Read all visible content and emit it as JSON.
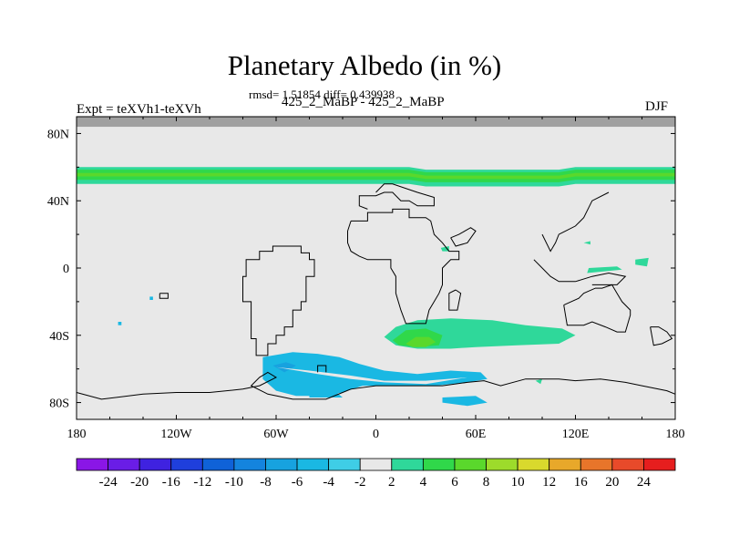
{
  "header": {
    "title": "Planetary Albedo (in %)",
    "stats": "rmsd= 1.51854 diff= 0.439938",
    "expt": "Expt = teXVh1-teXVh",
    "subtitle": "425_2_MaBP - 425_2_MaBP",
    "season": "DJF"
  },
  "chart_data": {
    "type": "heatmap",
    "title": "Planetary Albedo (in %)",
    "subtitle": "425_2_MaBP - 425_2_MaBP",
    "xlim": [
      -180,
      180
    ],
    "ylim": [
      -90,
      90
    ],
    "x_ticks": [
      {
        "value": -180,
        "label": "180"
      },
      {
        "value": -120,
        "label": "120W"
      },
      {
        "value": -60,
        "label": "60W"
      },
      {
        "value": 0,
        "label": "0"
      },
      {
        "value": 60,
        "label": "60E"
      },
      {
        "value": 120,
        "label": "120E"
      },
      {
        "value": 180,
        "label": "180"
      }
    ],
    "y_ticks": [
      {
        "value": 80,
        "label": "80N"
      },
      {
        "value": 40,
        "label": "40N"
      },
      {
        "value": 0,
        "label": "0"
      },
      {
        "value": -40,
        "label": "40S"
      },
      {
        "value": -80,
        "label": "80S"
      }
    ],
    "colorbar": {
      "labels": [
        "-24",
        "-20",
        "-16",
        "-12",
        "-10",
        "-8",
        "-6",
        "-4",
        "-2",
        "2",
        "4",
        "6",
        "8",
        "10",
        "12",
        "16",
        "20",
        "24"
      ],
      "colors": [
        "#8a16e6",
        "#6a1de6",
        "#3f22e0",
        "#1f3fdc",
        "#0f62d8",
        "#1484de",
        "#17a2df",
        "#1ab8e3",
        "#3fcde6",
        "#e8e8e8",
        "#2fd89a",
        "#30d84a",
        "#5ad82c",
        "#9ddb2b",
        "#d9d92d",
        "#e8a82a",
        "#e8752a",
        "#e84a2a",
        "#e61e1e"
      ]
    },
    "fields": [
      {
        "name": "northern-band",
        "lon": [
          -180,
          180
        ],
        "lat": [
          50,
          60
        ],
        "value_range": [
          4,
          8
        ]
      },
      {
        "name": "south-atlantic-indian",
        "lon": [
          5,
          120
        ],
        "lat": [
          -48,
          -30
        ],
        "value_range": [
          2,
          8
        ]
      },
      {
        "name": "southern-ocean-band",
        "lon": [
          -68,
          67
        ],
        "lat": [
          -80,
          -50
        ],
        "value_range": [
          -6,
          -2
        ]
      },
      {
        "name": "new-guinea-area",
        "lon": [
          125,
          165
        ],
        "lat": [
          -2,
          5
        ],
        "value_range": [
          2,
          4
        ]
      }
    ],
    "polar_mask": {
      "lat": [
        84,
        90
      ],
      "color": "#a0a0a0"
    },
    "background_color": "#e8e8e8"
  }
}
